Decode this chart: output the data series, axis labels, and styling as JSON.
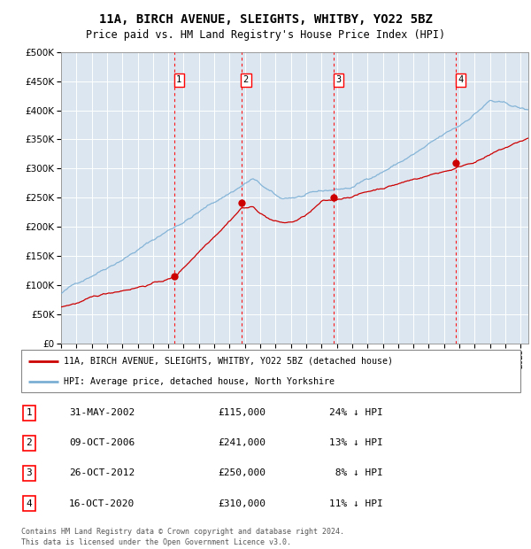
{
  "title": "11A, BIRCH AVENUE, SLEIGHTS, WHITBY, YO22 5BZ",
  "subtitle": "Price paid vs. HM Land Registry's House Price Index (HPI)",
  "legend_line1": "11A, BIRCH AVENUE, SLEIGHTS, WHITBY, YO22 5BZ (detached house)",
  "legend_line2": "HPI: Average price, detached house, North Yorkshire",
  "footnote1": "Contains HM Land Registry data © Crown copyright and database right 2024.",
  "footnote2": "This data is licensed under the Open Government Licence v3.0.",
  "ylim": [
    0,
    500000
  ],
  "yticks": [
    0,
    50000,
    100000,
    150000,
    200000,
    250000,
    300000,
    350000,
    400000,
    450000,
    500000
  ],
  "hpi_color": "#7bafd4",
  "sale_color": "#cc0000",
  "background_color": "#dce6f1",
  "grid_color": "#ffffff",
  "sale_points": [
    {
      "num": 1,
      "date": "31-MAY-2002",
      "year": 2002.42,
      "price": 115000,
      "pct": "24%",
      "dir": "↓"
    },
    {
      "num": 2,
      "date": "09-OCT-2006",
      "year": 2006.78,
      "price": 241000,
      "pct": "13%",
      "dir": "↓"
    },
    {
      "num": 3,
      "date": "26-OCT-2012",
      "year": 2012.82,
      "price": 250000,
      "pct": "8%",
      "dir": "↓"
    },
    {
      "num": 4,
      "date": "16-OCT-2020",
      "year": 2020.79,
      "price": 310000,
      "pct": "11%",
      "dir": "↓"
    }
  ],
  "table_rows": [
    [
      "1",
      "31-MAY-2002",
      "£115,000",
      "24% ↓ HPI"
    ],
    [
      "2",
      "09-OCT-2006",
      "£241,000",
      "13% ↓ HPI"
    ],
    [
      "3",
      "26-OCT-2012",
      "£250,000",
      " 8% ↓ HPI"
    ],
    [
      "4",
      "16-OCT-2020",
      "£310,000",
      "11% ↓ HPI"
    ]
  ]
}
